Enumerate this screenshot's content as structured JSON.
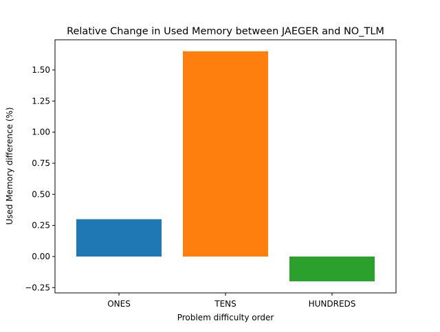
{
  "chart_data": {
    "type": "bar",
    "title": "Relative Change in Used Memory between JAEGER and NO_TLM",
    "xlabel": "Problem difficulty order",
    "ylabel": "Used Memory difference (%)",
    "categories": [
      "ONES",
      "TENS",
      "HUNDREDS"
    ],
    "values": [
      0.3,
      1.65,
      -0.2
    ],
    "colors": [
      "#1f77b4",
      "#ff7f0e",
      "#2ca02c"
    ],
    "ylim": [
      -0.2925,
      1.7425
    ],
    "yticks": [
      -0.25,
      0.0,
      0.25,
      0.5,
      0.75,
      1.0,
      1.25,
      1.5
    ],
    "ytick_labels": [
      "−0.25",
      "0.00",
      "0.25",
      "0.50",
      "0.75",
      "1.00",
      "1.25",
      "1.50"
    ],
    "grid": false,
    "legend": "none"
  }
}
